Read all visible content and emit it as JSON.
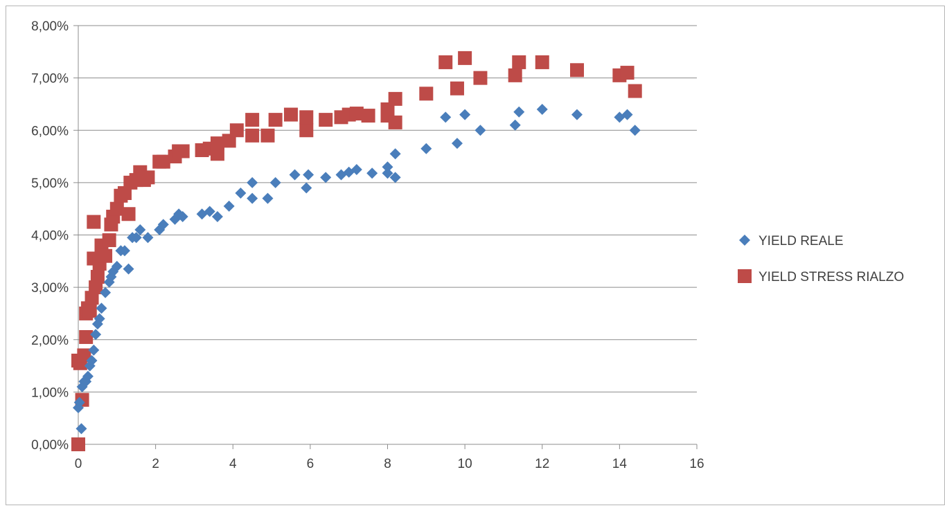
{
  "chart_data": {
    "type": "scatter",
    "title": "",
    "xlabel": "",
    "ylabel": "",
    "xlim": [
      0,
      16
    ],
    "ylim": [
      0,
      0.08
    ],
    "x_ticks": [
      0,
      2,
      4,
      6,
      8,
      10,
      12,
      14,
      16
    ],
    "x_tick_labels": [
      "0",
      "2",
      "4",
      "6",
      "8",
      "10",
      "12",
      "14",
      "16"
    ],
    "y_ticks": [
      0,
      0.01,
      0.02,
      0.03,
      0.04,
      0.05,
      0.06,
      0.07,
      0.08
    ],
    "y_tick_labels": [
      "0,00%",
      "1,00%",
      "2,00%",
      "3,00%",
      "4,00%",
      "5,00%",
      "6,00%",
      "7,00%",
      "8,00%"
    ],
    "grid": "horizontal",
    "legend_position": "right",
    "series": [
      {
        "name": "YIELD REALE",
        "marker": "diamond",
        "color": "#4a7ebb",
        "points": [
          [
            0.0,
            0.007
          ],
          [
            0.03,
            0.008
          ],
          [
            0.08,
            0.003
          ],
          [
            0.1,
            0.011
          ],
          [
            0.15,
            0.012
          ],
          [
            0.2,
            0.012
          ],
          [
            0.25,
            0.013
          ],
          [
            0.3,
            0.015
          ],
          [
            0.35,
            0.016
          ],
          [
            0.4,
            0.018
          ],
          [
            0.45,
            0.021
          ],
          [
            0.5,
            0.023
          ],
          [
            0.55,
            0.024
          ],
          [
            0.6,
            0.026
          ],
          [
            0.7,
            0.029
          ],
          [
            0.8,
            0.031
          ],
          [
            0.85,
            0.032
          ],
          [
            0.9,
            0.033
          ],
          [
            1.0,
            0.034
          ],
          [
            1.1,
            0.037
          ],
          [
            1.2,
            0.037
          ],
          [
            1.3,
            0.0335
          ],
          [
            1.4,
            0.0395
          ],
          [
            1.5,
            0.0395
          ],
          [
            1.6,
            0.041
          ],
          [
            1.8,
            0.0395
          ],
          [
            2.1,
            0.041
          ],
          [
            2.2,
            0.042
          ],
          [
            2.5,
            0.043
          ],
          [
            2.6,
            0.044
          ],
          [
            2.7,
            0.0435
          ],
          [
            3.2,
            0.044
          ],
          [
            3.4,
            0.0445
          ],
          [
            3.6,
            0.0435
          ],
          [
            3.9,
            0.0455
          ],
          [
            4.2,
            0.048
          ],
          [
            4.5,
            0.047
          ],
          [
            4.5,
            0.05
          ],
          [
            4.9,
            0.047
          ],
          [
            5.1,
            0.05
          ],
          [
            5.6,
            0.0515
          ],
          [
            5.9,
            0.049
          ],
          [
            5.95,
            0.0515
          ],
          [
            6.4,
            0.051
          ],
          [
            6.8,
            0.0515
          ],
          [
            7.0,
            0.052
          ],
          [
            7.2,
            0.0525
          ],
          [
            7.6,
            0.0518
          ],
          [
            8.0,
            0.053
          ],
          [
            8.0,
            0.0518
          ],
          [
            8.2,
            0.051
          ],
          [
            8.2,
            0.0555
          ],
          [
            9.0,
            0.0565
          ],
          [
            9.5,
            0.0625
          ],
          [
            9.8,
            0.0575
          ],
          [
            10.0,
            0.063
          ],
          [
            10.4,
            0.06
          ],
          [
            11.3,
            0.061
          ],
          [
            11.4,
            0.0635
          ],
          [
            12.0,
            0.064
          ],
          [
            12.9,
            0.063
          ],
          [
            14.0,
            0.0625
          ],
          [
            14.2,
            0.063
          ],
          [
            14.4,
            0.06
          ]
        ]
      },
      {
        "name": "YIELD STRESS RIALZO",
        "marker": "square",
        "color": "#be4b48",
        "points": [
          [
            0.0,
            0.0
          ],
          [
            0.0,
            0.016
          ],
          [
            0.05,
            0.0155
          ],
          [
            0.1,
            0.0085
          ],
          [
            0.15,
            0.017
          ],
          [
            0.2,
            0.0205
          ],
          [
            0.2,
            0.025
          ],
          [
            0.25,
            0.026
          ],
          [
            0.3,
            0.0255
          ],
          [
            0.35,
            0.028
          ],
          [
            0.4,
            0.0355
          ],
          [
            0.4,
            0.0425
          ],
          [
            0.45,
            0.03
          ],
          [
            0.5,
            0.032
          ],
          [
            0.55,
            0.0345
          ],
          [
            0.6,
            0.038
          ],
          [
            0.7,
            0.036
          ],
          [
            0.8,
            0.039
          ],
          [
            0.85,
            0.042
          ],
          [
            0.9,
            0.0435
          ],
          [
            1.0,
            0.045
          ],
          [
            1.1,
            0.0475
          ],
          [
            1.2,
            0.048
          ],
          [
            1.3,
            0.044
          ],
          [
            1.35,
            0.05
          ],
          [
            1.5,
            0.0505
          ],
          [
            1.6,
            0.052
          ],
          [
            1.7,
            0.0505
          ],
          [
            1.8,
            0.051
          ],
          [
            2.1,
            0.054
          ],
          [
            2.2,
            0.054
          ],
          [
            2.5,
            0.055
          ],
          [
            2.6,
            0.056
          ],
          [
            2.7,
            0.056
          ],
          [
            3.2,
            0.0562
          ],
          [
            3.4,
            0.0565
          ],
          [
            3.6,
            0.0575
          ],
          [
            3.6,
            0.0555
          ],
          [
            3.9,
            0.058
          ],
          [
            4.1,
            0.06
          ],
          [
            4.5,
            0.062
          ],
          [
            4.5,
            0.059
          ],
          [
            4.9,
            0.059
          ],
          [
            5.1,
            0.062
          ],
          [
            5.5,
            0.063
          ],
          [
            5.9,
            0.06
          ],
          [
            5.9,
            0.0625
          ],
          [
            6.4,
            0.062
          ],
          [
            6.8,
            0.0625
          ],
          [
            7.0,
            0.063
          ],
          [
            7.2,
            0.0632
          ],
          [
            7.5,
            0.0628
          ],
          [
            8.0,
            0.0628
          ],
          [
            8.0,
            0.064
          ],
          [
            8.2,
            0.066
          ],
          [
            8.2,
            0.0615
          ],
          [
            9.0,
            0.067
          ],
          [
            9.5,
            0.073
          ],
          [
            9.8,
            0.068
          ],
          [
            10.0,
            0.0738
          ],
          [
            10.4,
            0.07
          ],
          [
            11.3,
            0.0705
          ],
          [
            11.4,
            0.073
          ],
          [
            12.0,
            0.073
          ],
          [
            12.9,
            0.0715
          ],
          [
            14.0,
            0.0705
          ],
          [
            14.2,
            0.071
          ],
          [
            14.4,
            0.0675
          ]
        ]
      }
    ]
  }
}
